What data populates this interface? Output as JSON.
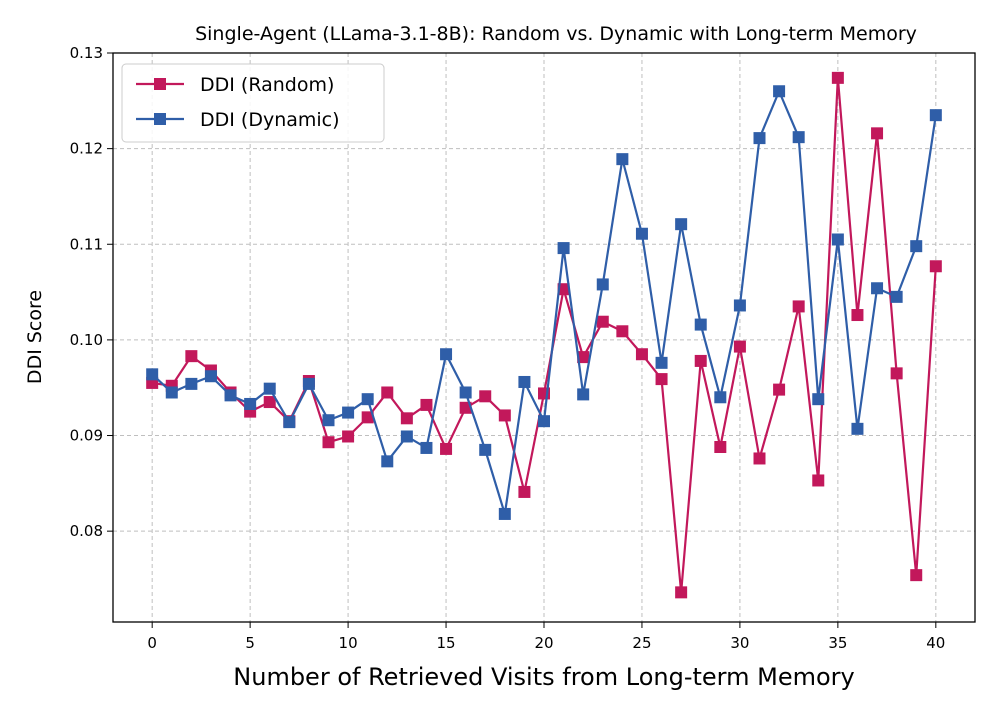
{
  "chart_data": {
    "type": "line",
    "title": "Single-Agent (LLama-3.1-8B): Random vs. Dynamic with Long-term Memory",
    "xlabel": "Number of Retrieved Visits from Long-term Memory",
    "ylabel": "DDI Score",
    "xlim": [
      -2,
      42
    ],
    "ylim": [
      0.0705,
      0.13
    ],
    "xticks": [
      0,
      5,
      10,
      15,
      20,
      25,
      30,
      35,
      40
    ],
    "xtick_labels": [
      "0",
      "5",
      "10",
      "15",
      "20",
      "25",
      "30",
      "35",
      "40"
    ],
    "yticks": [
      0.08,
      0.09,
      0.1,
      0.11,
      0.12,
      0.13
    ],
    "ytick_labels": [
      "0.08",
      "0.09",
      "0.10",
      "0.11",
      "0.12",
      "0.13"
    ],
    "grid": true,
    "legend_position": "top-left",
    "x": [
      0,
      1,
      2,
      3,
      4,
      5,
      6,
      7,
      8,
      9,
      10,
      11,
      12,
      13,
      14,
      15,
      16,
      17,
      18,
      19,
      20,
      21,
      22,
      23,
      24,
      25,
      26,
      27,
      28,
      29,
      30,
      31,
      32,
      33,
      34,
      35,
      36,
      37,
      38,
      39,
      40
    ],
    "series": [
      {
        "name": "DDI (Random)",
        "color": "#c2185b",
        "marker": "square",
        "values": [
          0.0955,
          0.0952,
          0.0983,
          0.0968,
          0.0945,
          0.0925,
          0.0935,
          0.0915,
          0.0957,
          0.0893,
          0.0899,
          0.0919,
          0.0945,
          0.0918,
          0.0932,
          0.0886,
          0.0929,
          0.0941,
          0.0921,
          0.0841,
          0.0944,
          0.1053,
          0.0982,
          0.1019,
          0.1009,
          0.0985,
          0.0959,
          0.0736,
          0.0978,
          0.0888,
          0.0993,
          0.0876,
          0.0948,
          0.1035,
          0.0853,
          0.1274,
          0.1026,
          0.1216,
          0.0965,
          0.0754,
          0.1077
        ]
      },
      {
        "name": "DDI (Dynamic)",
        "color": "#2f5ea8",
        "marker": "square",
        "values": [
          0.0964,
          0.0945,
          0.0954,
          0.0962,
          0.0942,
          0.0933,
          0.0949,
          0.0914,
          0.0954,
          0.0916,
          0.0924,
          0.0938,
          0.0873,
          0.0899,
          0.0887,
          0.0985,
          0.0945,
          0.0885,
          0.0818,
          0.0956,
          0.0915,
          0.1096,
          0.0943,
          0.1058,
          0.1189,
          0.1111,
          0.0976,
          0.1121,
          0.1016,
          0.094,
          0.1036,
          0.1211,
          0.126,
          0.1212,
          0.0938,
          0.1105,
          0.0907,
          0.1054,
          0.1045,
          0.1098,
          0.1235
        ]
      }
    ]
  }
}
